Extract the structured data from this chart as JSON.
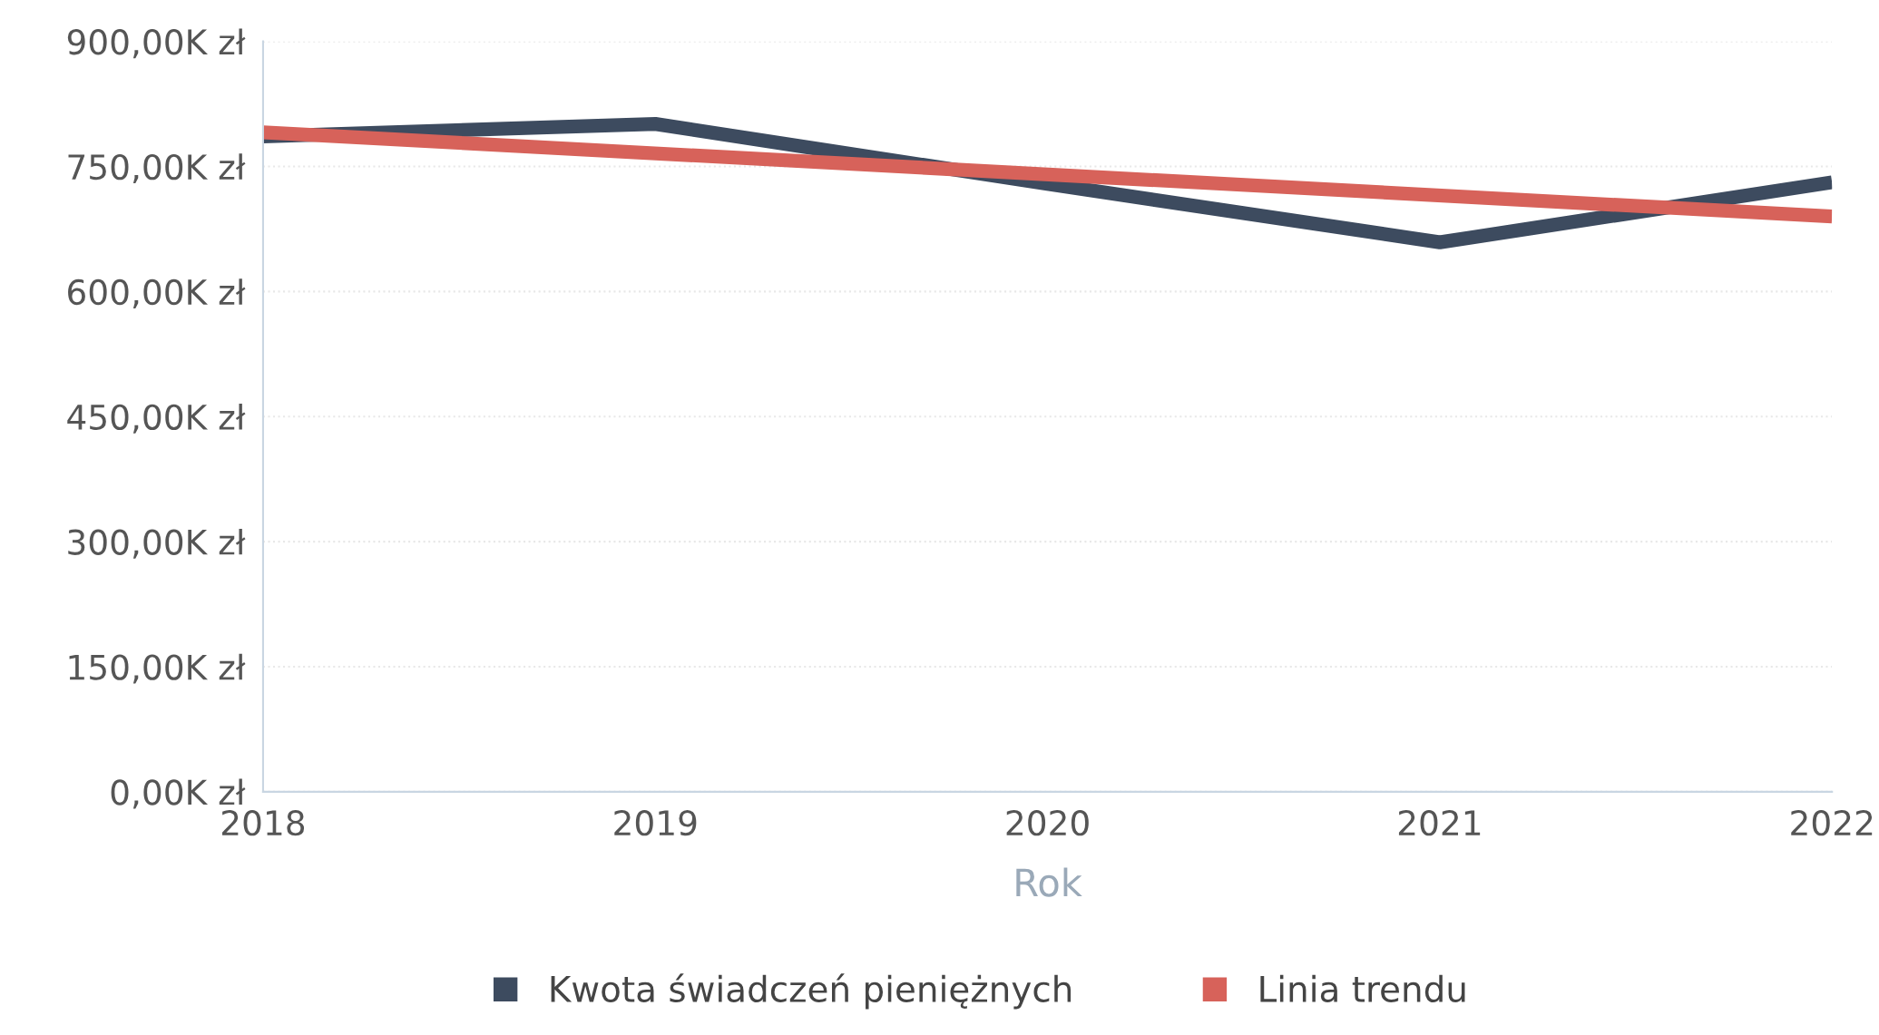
{
  "chart_data": {
    "type": "line",
    "xlabel": "Rok",
    "x": [
      2018,
      2019,
      2020,
      2021,
      2022
    ],
    "series": [
      {
        "name": "Kwota świadczeń pieniężnych",
        "color": "#3d4b5f",
        "values": [
          786000,
          801000,
          729000,
          659000,
          731000
        ]
      },
      {
        "name": "Linia trendu",
        "color": "#d7625a",
        "type": "line",
        "x": [
          2018,
          2022
        ],
        "values": [
          791000,
          690000
        ]
      }
    ],
    "xlim": [
      2018,
      2022
    ],
    "xticks": [
      2018,
      2019,
      2020,
      2021,
      2022
    ],
    "ylim": [
      0,
      900000
    ],
    "yticks": [
      {
        "value": 0,
        "label": "0,00K zł"
      },
      {
        "value": 150000,
        "label": "150,00K zł"
      },
      {
        "value": 300000,
        "label": "300,00K zł"
      },
      {
        "value": 450000,
        "label": "450,00K zł"
      },
      {
        "value": 600000,
        "label": "600,00K zł"
      },
      {
        "value": 750000,
        "label": "750,00K zł"
      },
      {
        "value": 900000,
        "label": "900,00K zł"
      }
    ],
    "grid": "y",
    "legend": "bottom",
    "marker": "none",
    "line_style": "solid"
  }
}
